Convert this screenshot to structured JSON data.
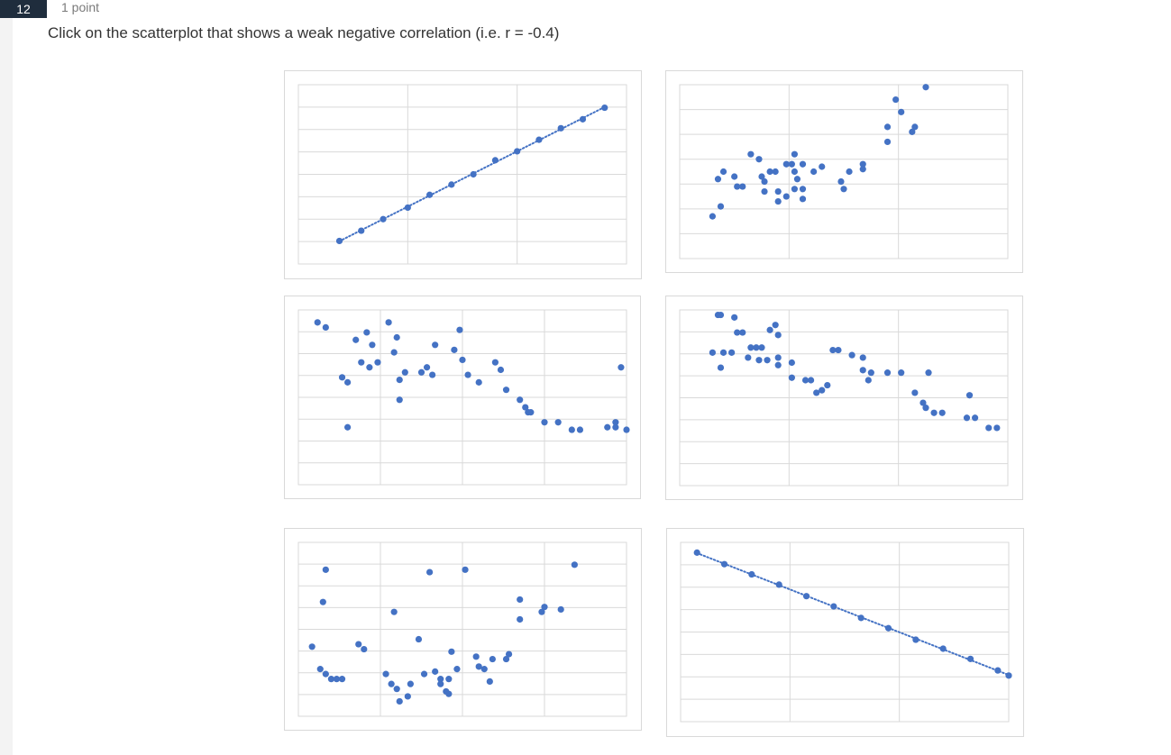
{
  "question": {
    "number": "12",
    "points": "1 point",
    "prompt": "Click on the scatterplot that shows a weak negative correlation (i.e. r = -0.4)"
  },
  "colors": {
    "marker": "#4472c4",
    "grid": "#d9d9d9",
    "frame_border": "#d9d9d9"
  },
  "chart_data": [
    {
      "type": "scatter",
      "trendline": "dotted-linear",
      "grid": true,
      "gridlines": {
        "x": 3,
        "y": 8
      },
      "xlim": [
        0,
        12
      ],
      "ylim": [
        0,
        7
      ],
      "points": [
        [
          1.5,
          0.9
        ],
        [
          2.3,
          1.3
        ],
        [
          3.1,
          1.75
        ],
        [
          4.0,
          2.2
        ],
        [
          4.8,
          2.7
        ],
        [
          5.6,
          3.1
        ],
        [
          6.4,
          3.5
        ],
        [
          7.2,
          4.05
        ],
        [
          8.0,
          4.4
        ],
        [
          8.8,
          4.85
        ],
        [
          9.6,
          5.3
        ],
        [
          10.4,
          5.65
        ],
        [
          11.2,
          6.1
        ]
      ]
    },
    {
      "type": "scatter",
      "grid": true,
      "gridlines": {
        "x": 3,
        "y": 7
      },
      "xlim": [
        0,
        12
      ],
      "ylim": [
        0,
        7
      ],
      "points": [
        [
          1.2,
          1.7
        ],
        [
          1.5,
          2.1
        ],
        [
          1.4,
          3.2
        ],
        [
          1.6,
          3.5
        ],
        [
          2.0,
          3.3
        ],
        [
          2.1,
          2.9
        ],
        [
          2.3,
          2.9
        ],
        [
          2.6,
          4.2
        ],
        [
          2.9,
          4.0
        ],
        [
          3.0,
          3.3
        ],
        [
          3.1,
          3.1
        ],
        [
          3.1,
          2.7
        ],
        [
          3.3,
          3.5
        ],
        [
          3.5,
          3.5
        ],
        [
          3.6,
          2.3
        ],
        [
          3.6,
          2.7
        ],
        [
          3.9,
          2.5
        ],
        [
          3.9,
          3.8
        ],
        [
          4.1,
          3.8
        ],
        [
          4.2,
          4.2
        ],
        [
          4.2,
          3.5
        ],
        [
          4.3,
          3.2
        ],
        [
          4.2,
          2.8
        ],
        [
          4.5,
          2.8
        ],
        [
          4.5,
          2.4
        ],
        [
          4.5,
          3.8
        ],
        [
          4.9,
          3.5
        ],
        [
          5.2,
          3.7
        ],
        [
          5.9,
          3.1
        ],
        [
          6.0,
          2.8
        ],
        [
          6.2,
          3.5
        ],
        [
          6.7,
          3.6
        ],
        [
          6.7,
          3.8
        ],
        [
          7.6,
          4.7
        ],
        [
          7.6,
          5.3
        ],
        [
          7.9,
          6.4
        ],
        [
          8.1,
          5.9
        ],
        [
          8.6,
          5.3
        ],
        [
          8.5,
          5.1
        ],
        [
          9.0,
          6.9
        ]
      ]
    },
    {
      "type": "scatter",
      "grid": true,
      "gridlines": {
        "x": 4,
        "y": 8
      },
      "xlim": [
        0,
        12
      ],
      "ylim": [
        0,
        7
      ],
      "points": [
        [
          0.7,
          6.5
        ],
        [
          1.0,
          6.3
        ],
        [
          1.6,
          4.3
        ],
        [
          1.8,
          4.1
        ],
        [
          1.8,
          2.3
        ],
        [
          2.1,
          5.8
        ],
        [
          2.3,
          4.9
        ],
        [
          2.6,
          4.7
        ],
        [
          2.5,
          6.1
        ],
        [
          2.7,
          5.6
        ],
        [
          2.9,
          4.9
        ],
        [
          3.3,
          6.5
        ],
        [
          3.5,
          5.3
        ],
        [
          3.6,
          5.9
        ],
        [
          3.7,
          4.2
        ],
        [
          3.7,
          3.4
        ],
        [
          3.9,
          4.5
        ],
        [
          4.5,
          4.5
        ],
        [
          4.7,
          4.7
        ],
        [
          4.9,
          4.4
        ],
        [
          5.0,
          5.6
        ],
        [
          5.7,
          5.4
        ],
        [
          5.9,
          6.2
        ],
        [
          6.0,
          5.0
        ],
        [
          6.2,
          4.4
        ],
        [
          6.6,
          4.1
        ],
        [
          7.2,
          4.9
        ],
        [
          7.4,
          4.6
        ],
        [
          7.6,
          3.8
        ],
        [
          8.1,
          3.4
        ],
        [
          8.3,
          3.1
        ],
        [
          8.4,
          2.9
        ],
        [
          8.5,
          2.9
        ],
        [
          9.0,
          2.5
        ],
        [
          9.5,
          2.5
        ],
        [
          10.0,
          2.2
        ],
        [
          10.3,
          2.2
        ],
        [
          11.3,
          2.3
        ],
        [
          11.6,
          2.3
        ],
        [
          12.0,
          2.2
        ],
        [
          11.8,
          4.7
        ],
        [
          11.6,
          2.5
        ]
      ]
    },
    {
      "type": "scatter",
      "grid": true,
      "gridlines": {
        "x": 3,
        "y": 8
      },
      "xlim": [
        0,
        12
      ],
      "ylim": [
        0,
        7
      ],
      "points": [
        [
          1.4,
          6.8
        ],
        [
          1.5,
          6.8
        ],
        [
          2.0,
          6.7
        ],
        [
          2.1,
          6.1
        ],
        [
          2.3,
          6.1
        ],
        [
          2.6,
          5.5
        ],
        [
          2.8,
          5.5
        ],
        [
          3.0,
          5.5
        ],
        [
          3.3,
          6.2
        ],
        [
          3.5,
          6.4
        ],
        [
          3.6,
          6.0
        ],
        [
          1.2,
          5.3
        ],
        [
          1.6,
          5.3
        ],
        [
          1.9,
          5.3
        ],
        [
          2.5,
          5.1
        ],
        [
          2.9,
          5.0
        ],
        [
          3.2,
          5.0
        ],
        [
          3.6,
          5.1
        ],
        [
          3.6,
          4.8
        ],
        [
          4.1,
          4.9
        ],
        [
          4.1,
          4.3
        ],
        [
          4.6,
          4.2
        ],
        [
          4.8,
          4.2
        ],
        [
          5.0,
          3.7
        ],
        [
          5.2,
          3.8
        ],
        [
          5.4,
          4.0
        ],
        [
          5.6,
          5.4
        ],
        [
          5.8,
          5.4
        ],
        [
          6.3,
          5.2
        ],
        [
          6.7,
          5.1
        ],
        [
          6.7,
          4.6
        ],
        [
          6.9,
          4.2
        ],
        [
          7.0,
          4.5
        ],
        [
          7.6,
          4.5
        ],
        [
          8.1,
          4.5
        ],
        [
          8.6,
          3.7
        ],
        [
          8.9,
          3.3
        ],
        [
          9.0,
          3.1
        ],
        [
          9.3,
          2.9
        ],
        [
          9.6,
          2.9
        ],
        [
          10.5,
          2.7
        ],
        [
          10.8,
          2.7
        ],
        [
          11.3,
          2.3
        ],
        [
          11.6,
          2.3
        ],
        [
          1.5,
          4.7
        ],
        [
          9.1,
          4.5
        ],
        [
          10.6,
          3.6
        ]
      ]
    },
    {
      "type": "scatter",
      "grid": true,
      "gridlines": {
        "x": 4,
        "y": 8
      },
      "xlim": [
        0,
        12
      ],
      "ylim": [
        0,
        7
      ],
      "points": [
        [
          0.5,
          2.8
        ],
        [
          0.8,
          1.9
        ],
        [
          1.0,
          1.7
        ],
        [
          1.0,
          5.9
        ],
        [
          1.2,
          1.5
        ],
        [
          1.4,
          1.5
        ],
        [
          1.6,
          1.5
        ],
        [
          2.2,
          2.9
        ],
        [
          2.4,
          2.7
        ],
        [
          3.2,
          1.7
        ],
        [
          3.5,
          4.2
        ],
        [
          3.4,
          1.3
        ],
        [
          3.6,
          1.1
        ],
        [
          3.7,
          0.6
        ],
        [
          4.1,
          1.3
        ],
        [
          4.4,
          3.1
        ],
        [
          4.6,
          1.7
        ],
        [
          4.8,
          5.8
        ],
        [
          5.0,
          1.8
        ],
        [
          5.2,
          1.5
        ],
        [
          5.2,
          1.3
        ],
        [
          5.4,
          1.0
        ],
        [
          5.5,
          1.5
        ],
        [
          5.6,
          2.6
        ],
        [
          5.8,
          1.9
        ],
        [
          6.1,
          5.9
        ],
        [
          6.5,
          2.4
        ],
        [
          6.8,
          1.9
        ],
        [
          7.0,
          1.4
        ],
        [
          7.1,
          2.3
        ],
        [
          7.6,
          2.3
        ],
        [
          7.7,
          2.5
        ],
        [
          8.1,
          4.7
        ],
        [
          8.1,
          3.9
        ],
        [
          8.9,
          4.2
        ],
        [
          9.0,
          4.4
        ],
        [
          9.6,
          4.3
        ],
        [
          10.1,
          6.1
        ],
        [
          4.0,
          0.8
        ],
        [
          5.5,
          0.9
        ],
        [
          0.9,
          4.6
        ],
        [
          6.6,
          2.0
        ]
      ]
    },
    {
      "type": "scatter",
      "trendline": "dotted-linear",
      "grid": true,
      "gridlines": {
        "x": 3,
        "y": 8
      },
      "xlim": [
        0,
        12
      ],
      "ylim": [
        0,
        7
      ],
      "points": [
        [
          0.6,
          6.6
        ],
        [
          1.6,
          6.15
        ],
        [
          2.6,
          5.75
        ],
        [
          3.6,
          5.35
        ],
        [
          4.6,
          4.9
        ],
        [
          5.6,
          4.5
        ],
        [
          6.6,
          4.05
        ],
        [
          7.6,
          3.65
        ],
        [
          8.6,
          3.2
        ],
        [
          9.6,
          2.85
        ],
        [
          10.6,
          2.45
        ],
        [
          11.6,
          2.0
        ],
        [
          12.0,
          1.8
        ]
      ]
    }
  ]
}
